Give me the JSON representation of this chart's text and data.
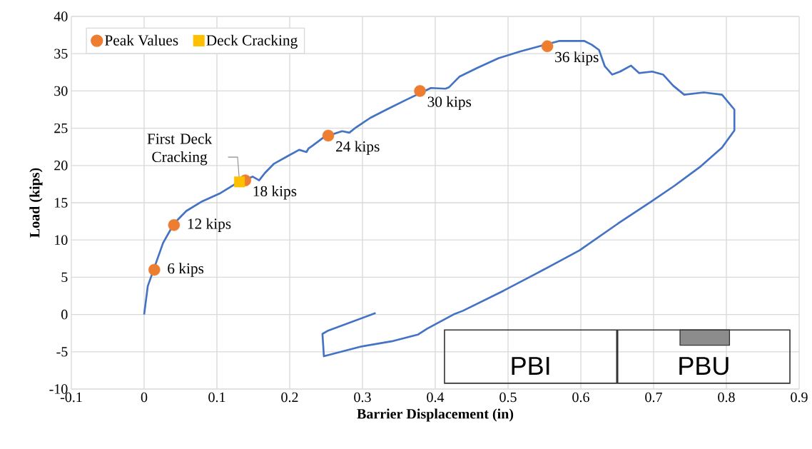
{
  "chart_data": {
    "type": "line",
    "xlabel": "Barrier Displacement (in)",
    "ylabel": "Load (kips)",
    "xlim": [
      -0.1,
      0.9
    ],
    "ylim": [
      -10,
      40
    ],
    "xticks": [
      -0.1,
      0,
      0.1,
      0.2,
      0.3,
      0.4,
      0.5,
      0.6,
      0.7,
      0.8,
      0.9
    ],
    "yticks": [
      -10,
      -5,
      0,
      5,
      10,
      15,
      20,
      25,
      30,
      35,
      40
    ],
    "grid": true,
    "legend": "top left",
    "series": [
      {
        "color": "#4472c4",
        "marker": "none",
        "line_style": "solid",
        "x": [
          0,
          0.005,
          0.014,
          0.026,
          0.041,
          0.058,
          0.08,
          0.105,
          0.125,
          0.149,
          0.158,
          0.166,
          0.178,
          0.198,
          0.213,
          0.223,
          0.226,
          0.232,
          0.247,
          0.253,
          0.272,
          0.282,
          0.291,
          0.311,
          0.335,
          0.36,
          0.378,
          0.394,
          0.414,
          0.419,
          0.433,
          0.458,
          0.487,
          0.517,
          0.57,
          0.605,
          0.615,
          0.625,
          0.633,
          0.643,
          0.654,
          0.669,
          0.68,
          0.698,
          0.713,
          0.727,
          0.742,
          0.769,
          0.794,
          0.811,
          0.811,
          0.794,
          0.765,
          0.729,
          0.696,
          0.651,
          0.598,
          0.539,
          0.494,
          0.438,
          0.425,
          0.389,
          0.376,
          0.34,
          0.298,
          0.247,
          0.245,
          0.252,
          0.318
        ],
        "values": [
          0,
          3.8,
          null,
          9.6,
          12.2,
          13.9,
          15.2,
          16.3,
          17.5,
          18.5,
          18.0,
          19.0,
          20.2,
          21.3,
          22.1,
          21.8,
          22.3,
          22.7,
          23.8,
          null,
          24.6,
          24.4,
          25.1,
          26.4,
          27.6,
          28.8,
          null,
          30.4,
          30.3,
          30.5,
          31.9,
          33.1,
          34.4,
          35.3,
          36.7,
          36.7,
          36.2,
          35.5,
          33.3,
          32.2,
          32.6,
          33.4,
          32.4,
          32.6,
          32.2,
          30.7,
          29.5,
          29.8,
          29.5,
          27.5,
          24.7,
          22.4,
          19.9,
          17.3,
          15.1,
          12.2,
          8.6,
          5.5,
          3.2,
          0.5,
          0,
          -1.9,
          -2.7,
          -3.6,
          -4.3,
          -5.6,
          -2.6,
          -2.2,
          0.2
        ]
      },
      {
        "type": "scatter",
        "name": "Peak Values",
        "color": "#ed7d31",
        "marker": "circle",
        "x": [
          0.014,
          0.041,
          0.139,
          0.253,
          0.379,
          0.554
        ],
        "values": [
          6,
          12,
          18,
          24,
          30,
          36
        ],
        "value_labels": [
          "6 kips",
          "12 kips",
          "18 kips",
          "24 kips",
          "30 kips",
          "36 kips"
        ]
      },
      {
        "type": "scatter",
        "name": "Deck Cracking",
        "color": "#ffc000",
        "marker": "square",
        "x": [
          0.131
        ],
        "values": [
          17.8
        ]
      }
    ],
    "annotations": [
      {
        "text": "First Deck Cracking",
        "x": 0.131,
        "y": 17.8
      },
      "PBI",
      "PBU"
    ]
  }
}
